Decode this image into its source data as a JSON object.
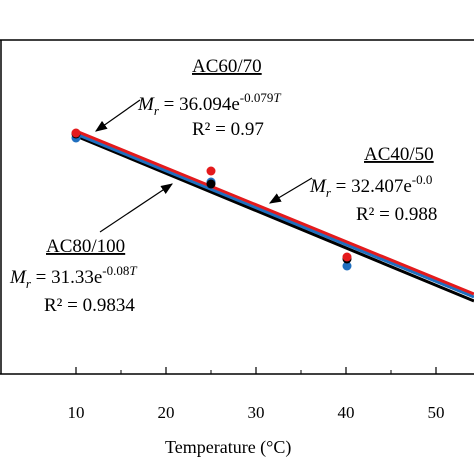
{
  "chart_data": {
    "type": "scatter",
    "xlabel": "Temperature (°C)",
    "x_ticks": [
      "10",
      "20",
      "30",
      "40",
      "50"
    ],
    "xlim": [
      0,
      55
    ],
    "ylim": [
      0,
      40
    ],
    "grid": false,
    "series": [
      {
        "name": "AC60/70",
        "color": "#e41a1c",
        "points": [
          [
            10,
            16.4
          ],
          [
            25,
            5.6
          ],
          [
            40,
            2.5
          ]
        ],
        "fit": {
          "x0": 10,
          "y0": 16.3,
          "x1": 55,
          "y1": 3.2
        },
        "equation_prefix": "M",
        "equation_sub": "r",
        "equation_mid": " = 36.094e",
        "equation_exp": "-0.079",
        "equation_var": "T",
        "r2": "R² = 0.97"
      },
      {
        "name": "AC40/50",
        "color": "#1f6fbf",
        "points": [
          [
            10,
            15.2
          ],
          [
            25,
            4.9
          ],
          [
            40,
            2.2
          ]
        ],
        "fit": {
          "x0": 10,
          "y0": 16.1,
          "x1": 55,
          "y1": 3.1
        },
        "equation_prefix": "M",
        "equation_sub": "r",
        "equation_mid": " = 32.407e",
        "equation_exp": "-0.0",
        "equation_var": "",
        "r2": "R² = 0.988"
      },
      {
        "name": "AC80/100",
        "color": "#000000",
        "points": [
          [
            10,
            15.8
          ],
          [
            25,
            5.0
          ],
          [
            40,
            2.3
          ]
        ],
        "fit": {
          "x0": 10,
          "y0": 15.8,
          "x1": 55,
          "y1": 2.9
        },
        "equation_prefix": "M",
        "equation_sub": "r",
        "equation_mid": " = 31.33e",
        "equation_exp": "-0.08",
        "equation_var": "T",
        "r2": "R² = 0.9834"
      }
    ]
  }
}
